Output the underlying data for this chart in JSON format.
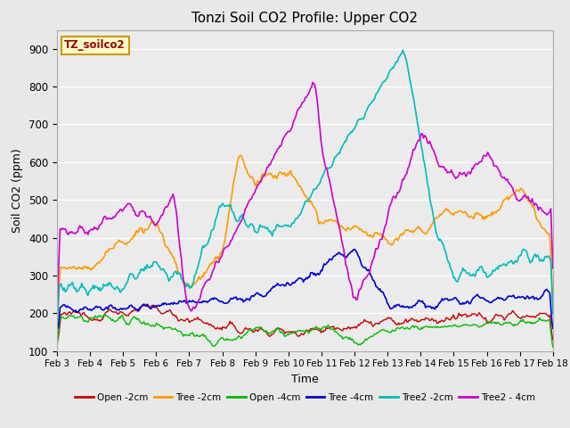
{
  "title": "Tonzi Soil CO2 Profile: Upper CO2",
  "ylabel": "Soil CO2 (ppm)",
  "xlabel": "Time",
  "watermark": "TZ_soilco2",
  "ylim": [
    100,
    950
  ],
  "background_color": "#e8e8e8",
  "plot_bg_color": "#ebebeb",
  "x_labels": [
    "Feb 3",
    "Feb 4",
    "Feb 5",
    "Feb 6",
    "Feb 7",
    "Feb 8",
    "Feb 9",
    "Feb 10",
    "Feb 11",
    "Feb 12",
    "Feb 13",
    "Feb 14",
    "Feb 15",
    "Feb 16",
    "Feb 17",
    "Feb 18"
  ],
  "series": {
    "Open -2cm": {
      "color": "#cc0000",
      "lw": 1.0
    },
    "Tree -2cm": {
      "color": "#ff9900",
      "lw": 1.2
    },
    "Open -4cm": {
      "color": "#00bb00",
      "lw": 1.0
    },
    "Tree -4cm": {
      "color": "#0000cc",
      "lw": 1.2
    },
    "Tree2 -2cm": {
      "color": "#00bbbb",
      "lw": 1.2
    },
    "Tree2 - 4cm": {
      "color": "#cc00cc",
      "lw": 1.2
    }
  },
  "legend_colors": [
    "#cc0000",
    "#ff9900",
    "#00bb00",
    "#0000cc",
    "#00bbbb",
    "#cc00cc"
  ],
  "legend_labels": [
    "Open -2cm",
    "Tree -2cm",
    "Open -4cm",
    "Tree -4cm",
    "Tree2 -2cm",
    "Tree2 - 4cm"
  ],
  "n_points": 480
}
